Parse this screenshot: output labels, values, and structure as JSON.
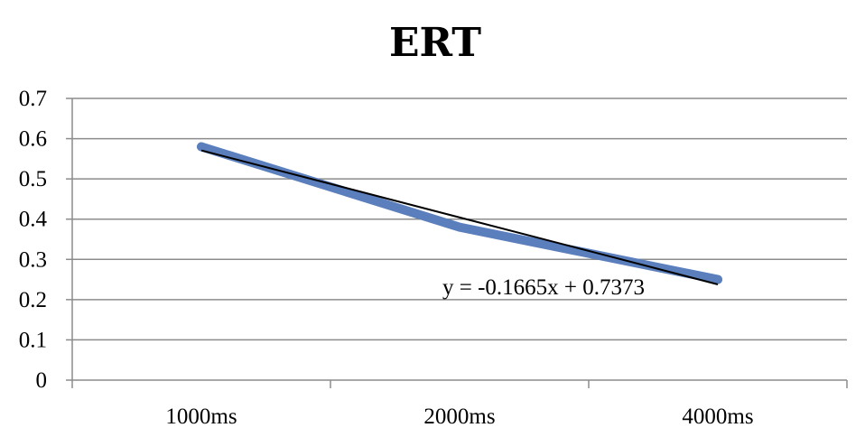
{
  "chart_data": {
    "type": "line",
    "title": "ERT",
    "categories": [
      "1000ms",
      "2000ms",
      "4000ms"
    ],
    "series": [
      {
        "values": [
          0.58,
          0.38,
          0.25
        ],
        "color": "#5b7fbd"
      }
    ],
    "trendline": {
      "equation": "y = -0.1665x + 0.7373",
      "slope": -0.1665,
      "intercept": 0.7373,
      "color": "#000000"
    },
    "ylim": [
      0,
      0.7
    ],
    "yticks": [
      "0",
      "0.1",
      "0.2",
      "0.3",
      "0.4",
      "0.5",
      "0.6",
      "0.7"
    ],
    "grid": true,
    "gridColor": "#8c8c8c",
    "legend": "none"
  }
}
